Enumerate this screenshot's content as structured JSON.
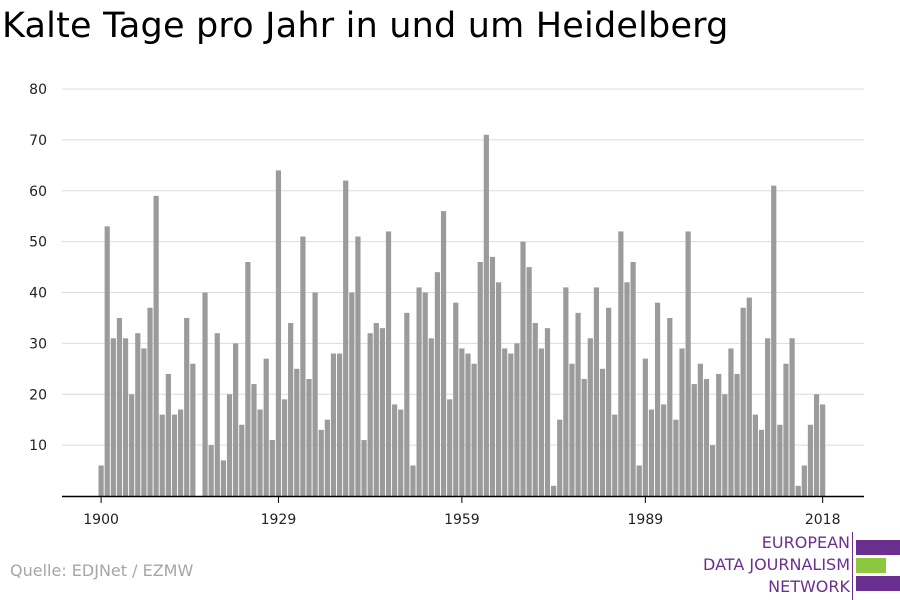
{
  "title": "Kalte Tage pro Jahr in und um Heidelberg",
  "source": "Quelle: EDJNet / EZMW",
  "logo": {
    "lines": [
      "EUROPEAN",
      "DATA JOURNALISM",
      "NETWORK"
    ],
    "colors": {
      "primary": "#6b2f8f",
      "accent": "#8dc63f"
    }
  },
  "colors": {
    "bar": "#9b9b9b",
    "grid": "#dcdcdc",
    "axis": "#000000"
  },
  "chart_data": {
    "type": "bar",
    "title": "Kalte Tage pro Jahr in und um Heidelberg",
    "xlabel": "",
    "ylabel": "",
    "x_start": 1900,
    "x_end": 2018,
    "xticks": [
      1900,
      1929,
      1959,
      1989,
      2018
    ],
    "yticks": [
      10,
      20,
      30,
      40,
      50,
      60,
      70,
      80
    ],
    "ylim": [
      0,
      80
    ],
    "grid": "horizontal",
    "values": [
      6,
      53,
      31,
      35,
      31,
      20,
      32,
      29,
      37,
      59,
      16,
      24,
      16,
      17,
      35,
      26,
      0,
      40,
      10,
      32,
      7,
      20,
      30,
      14,
      46,
      22,
      17,
      27,
      11,
      64,
      19,
      34,
      25,
      51,
      23,
      40,
      13,
      15,
      28,
      28,
      62,
      40,
      51,
      11,
      32,
      34,
      33,
      52,
      18,
      17,
      36,
      6,
      41,
      40,
      31,
      44,
      56,
      19,
      38,
      29,
      28,
      26,
      46,
      71,
      47,
      42,
      29,
      28,
      30,
      50,
      45,
      34,
      29,
      33,
      2,
      15,
      41,
      26,
      36,
      23,
      31,
      41,
      25,
      37,
      16,
      52,
      42,
      46,
      6,
      27,
      17,
      38,
      18,
      35,
      15,
      29,
      52,
      22,
      26,
      23,
      10,
      24,
      20,
      29,
      24,
      37,
      39,
      16,
      13,
      31,
      61,
      14,
      26,
      31,
      2,
      6,
      14,
      20,
      18
    ]
  }
}
